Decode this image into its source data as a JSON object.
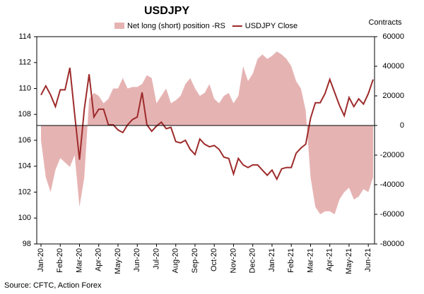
{
  "chart_data": {
    "type": "line",
    "title": "USDJPY",
    "y2_label": "Contracts",
    "source": "Source: CFTC, Action Forex",
    "categories": [
      "Jan-20",
      null,
      null,
      null,
      "Feb-20",
      null,
      null,
      null,
      "Mar-20",
      null,
      null,
      null,
      "Apr-20",
      null,
      null,
      null,
      "May-20",
      null,
      null,
      null,
      "Jun-20",
      null,
      null,
      null,
      "Jul-20",
      null,
      null,
      null,
      "Aug-20",
      null,
      null,
      null,
      "Sep-20",
      null,
      null,
      null,
      "Oct-20",
      null,
      null,
      null,
      "Nov-20",
      null,
      null,
      null,
      "Dec-20",
      null,
      null,
      null,
      "Jan-21",
      null,
      null,
      null,
      "Feb-21",
      null,
      null,
      null,
      "Mar-21",
      null,
      null,
      null,
      "Apr-21",
      null,
      null,
      null,
      "May-21",
      null,
      null,
      null,
      "Jun-21",
      null
    ],
    "ylim": [
      98,
      114
    ],
    "yticks": [
      98,
      100,
      102,
      104,
      106,
      108,
      110,
      112,
      114
    ],
    "y2lim": [
      -80000,
      60000
    ],
    "y2ticks": [
      -80000,
      -60000,
      -40000,
      -20000,
      0,
      20000,
      40000,
      60000
    ],
    "series": [
      {
        "name": "Net long (short) position -RS",
        "type": "area",
        "axis": "y2",
        "color": "#e6b3b3",
        "values": [
          -10000,
          -35000,
          -45000,
          -30000,
          -22000,
          -25000,
          -28000,
          -20000,
          -55000,
          -35000,
          18000,
          22000,
          20000,
          15000,
          18000,
          25000,
          25000,
          32000,
          25000,
          26000,
          26000,
          28000,
          34000,
          32000,
          15000,
          20000,
          25000,
          15000,
          17000,
          20000,
          28000,
          32000,
          25000,
          20000,
          22000,
          28000,
          18000,
          15000,
          20000,
          22000,
          15000,
          20000,
          40000,
          30000,
          35000,
          45000,
          48000,
          45000,
          47000,
          50000,
          48000,
          45000,
          40000,
          30000,
          25000,
          10000,
          -35000,
          -55000,
          -60000,
          -58000,
          -58000,
          -60000,
          -50000,
          -45000,
          -42000,
          -50000,
          -48000,
          -43000,
          -45000,
          -35000
        ]
      },
      {
        "name": "USDJPY Close",
        "color": "#9e2b2b",
        "values": [
          109.5,
          110.2,
          109.5,
          108.6,
          109.9,
          109.9,
          111.6,
          108.0,
          104.5,
          108.4,
          111.1,
          107.8,
          108.4,
          108.4,
          107.2,
          107.2,
          106.8,
          106.6,
          107.2,
          107.6,
          107.8,
          109.7,
          107.2,
          106.7,
          107.1,
          107.4,
          106.9,
          107.0,
          105.9,
          105.8,
          106.0,
          105.3,
          104.9,
          106.1,
          105.7,
          105.5,
          105.6,
          105.3,
          104.7,
          104.6,
          103.4,
          104.6,
          104.1,
          103.9,
          104.1,
          104.1,
          103.7,
          103.3,
          103.7,
          103.0,
          103.8,
          103.9,
          103.9,
          105.0,
          105.4,
          105.7,
          107.7,
          108.9,
          108.9,
          109.6,
          110.7,
          109.7,
          108.7,
          107.9,
          109.3,
          108.6,
          109.2,
          108.8,
          109.6,
          110.7
        ]
      }
    ]
  }
}
